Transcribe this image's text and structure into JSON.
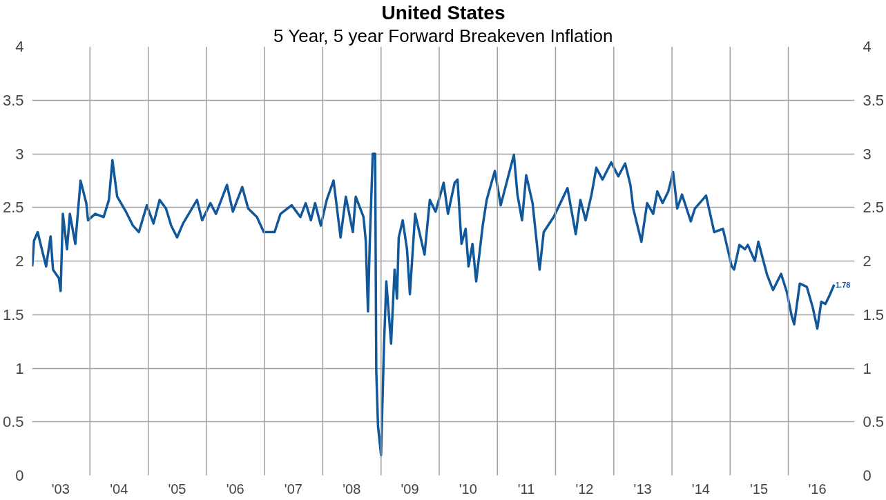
{
  "chart_data": {
    "type": "line",
    "title": "United States",
    "subtitle": "5 Year, 5 year Forward Breakeven Inflation",
    "x": [
      "2003-01-04",
      "2003-01-15",
      "2003-02-07",
      "2003-03-05",
      "2003-04-01",
      "2003-04-29",
      "2003-05-14",
      "2003-06-20",
      "2003-07-01",
      "2003-07-15",
      "2003-08-10",
      "2003-08-28",
      "2003-10-01",
      "2003-11-03",
      "2003-12-09",
      "2003-12-20",
      "2004-02-03",
      "2004-03-27",
      "2004-04-29",
      "2004-05-21",
      "2004-06-20",
      "2004-08-14",
      "2004-09-27",
      "2004-11-03",
      "2004-12-23",
      "2005-02-03",
      "2005-03-13",
      "2005-04-22",
      "2005-05-25",
      "2005-07-01",
      "2005-08-07",
      "2005-11-03",
      "2005-12-05",
      "2006-01-26",
      "2006-03-02",
      "2006-05-10",
      "2006-06-16",
      "2006-08-14",
      "2006-09-20",
      "2006-11-14",
      "2006-12-27",
      "2007-03-05",
      "2007-04-11",
      "2007-06-20",
      "2007-08-14",
      "2007-09-16",
      "2007-10-19",
      "2007-11-14",
      "2007-12-20",
      "2008-01-26",
      "2008-03-09",
      "2008-04-22",
      "2008-05-25",
      "2008-07-08",
      "2008-07-26",
      "2008-09-13",
      "2008-09-27",
      "2008-10-11",
      "2008-10-22",
      "2008-11-10",
      "2008-11-25",
      "2008-12-02",
      "2008-12-13",
      "2009-01-01",
      "2009-01-19",
      "2009-02-03",
      "2009-03-05",
      "2009-03-27",
      "2009-04-11",
      "2009-04-22",
      "2009-05-17",
      "2009-06-13",
      "2009-07-01",
      "2009-08-03",
      "2009-10-01",
      "2009-11-03",
      "2009-12-09",
      "2010-01-29",
      "2010-02-25",
      "2010-04-08",
      "2010-04-26",
      "2010-05-21",
      "2010-06-16",
      "2010-07-04",
      "2010-07-29",
      "2010-08-21",
      "2010-10-01",
      "2010-10-26",
      "2010-12-16",
      "2011-01-22",
      "2011-03-05",
      "2011-04-15",
      "2011-05-07",
      "2011-06-05",
      "2011-07-01",
      "2011-08-10",
      "2011-09-23",
      "2011-10-19",
      "2011-12-20",
      "2012-02-10",
      "2012-03-16",
      "2012-05-07",
      "2012-06-05",
      "2012-07-08",
      "2012-08-14",
      "2012-09-13",
      "2012-10-22",
      "2012-12-16",
      "2013-01-29",
      "2013-03-13",
      "2013-04-15",
      "2013-05-03",
      "2013-06-23",
      "2013-07-29",
      "2013-09-05",
      "2013-10-01",
      "2013-11-03",
      "2013-12-09",
      "2014-01-08",
      "2014-02-03",
      "2014-03-05",
      "2014-04-29",
      "2014-05-25",
      "2014-08-03",
      "2014-09-23",
      "2014-11-17",
      "2015-01-11",
      "2015-01-26",
      "2015-02-28",
      "2015-04-04",
      "2015-04-22",
      "2015-06-05",
      "2015-06-27",
      "2015-08-21",
      "2015-09-27",
      "2015-11-17",
      "2015-12-23",
      "2016-01-22",
      "2016-02-07",
      "2016-03-13",
      "2016-04-26",
      "2016-06-02",
      "2016-07-01",
      "2016-07-26",
      "2016-08-21",
      "2016-09-16",
      "2016-10-15"
    ],
    "series": [
      {
        "color": "#11589b",
        "values": [
          1.95,
          2.19,
          2.27,
          2.11,
          1.95,
          2.23,
          1.92,
          1.84,
          1.72,
          2.44,
          2.11,
          2.44,
          2.16,
          2.75,
          2.54,
          2.38,
          2.44,
          2.41,
          2.57,
          2.94,
          2.6,
          2.46,
          2.33,
          2.27,
          2.52,
          2.35,
          2.57,
          2.49,
          2.33,
          2.22,
          2.35,
          2.57,
          2.38,
          2.54,
          2.44,
          2.71,
          2.46,
          2.69,
          2.49,
          2.41,
          2.27,
          2.27,
          2.44,
          2.52,
          2.41,
          2.54,
          2.38,
          2.54,
          2.33,
          2.57,
          2.75,
          2.22,
          2.6,
          2.27,
          2.6,
          2.41,
          2.19,
          1.53,
          2.16,
          3.0,
          3.0,
          0.98,
          0.46,
          0.19,
          1.19,
          1.81,
          1.23,
          1.92,
          1.65,
          2.22,
          2.38,
          2.11,
          1.69,
          2.44,
          2.06,
          2.57,
          2.46,
          2.73,
          2.44,
          2.73,
          2.76,
          2.16,
          2.3,
          1.95,
          2.16,
          1.81,
          2.33,
          2.57,
          2.84,
          2.52,
          2.76,
          2.99,
          2.62,
          2.38,
          2.8,
          2.54,
          1.92,
          2.27,
          2.41,
          2.57,
          2.68,
          2.25,
          2.57,
          2.38,
          2.62,
          2.87,
          2.76,
          2.92,
          2.79,
          2.91,
          2.71,
          2.49,
          2.18,
          2.54,
          2.44,
          2.65,
          2.54,
          2.65,
          2.83,
          2.49,
          2.62,
          2.37,
          2.49,
          2.61,
          2.27,
          2.3,
          1.95,
          1.92,
          2.15,
          2.11,
          2.15,
          2.0,
          2.18,
          1.87,
          1.73,
          1.88,
          1.71,
          1.49,
          1.41,
          1.79,
          1.76,
          1.57,
          1.37,
          1.62,
          1.6,
          1.68,
          1.78
        ]
      }
    ],
    "annotations": [
      {
        "text": "1.78",
        "x": "2016-10-15",
        "y": 1.78
      }
    ],
    "xlim": [
      "2003-01-03",
      "2017-02-20"
    ],
    "xticks": [
      {
        "value": "2003-07-01",
        "label": "'03"
      },
      {
        "value": "2004-01-01",
        "label": null
      },
      {
        "value": "2004-07-01",
        "label": "'04"
      },
      {
        "value": "2005-01-01",
        "label": null
      },
      {
        "value": "2005-07-01",
        "label": "'05"
      },
      {
        "value": "2006-01-01",
        "label": null
      },
      {
        "value": "2006-07-01",
        "label": "'06"
      },
      {
        "value": "2007-01-01",
        "label": null
      },
      {
        "value": "2007-07-01",
        "label": "'07"
      },
      {
        "value": "2008-01-01",
        "label": null
      },
      {
        "value": "2008-07-01",
        "label": "'08"
      },
      {
        "value": "2009-01-01",
        "label": null
      },
      {
        "value": "2009-07-01",
        "label": "'09"
      },
      {
        "value": "2010-01-01",
        "label": null
      },
      {
        "value": "2010-07-01",
        "label": "'10"
      },
      {
        "value": "2011-01-01",
        "label": null
      },
      {
        "value": "2011-07-01",
        "label": "'11"
      },
      {
        "value": "2012-01-01",
        "label": null
      },
      {
        "value": "2012-07-01",
        "label": "'12"
      },
      {
        "value": "2013-01-01",
        "label": null
      },
      {
        "value": "2013-07-01",
        "label": "'13"
      },
      {
        "value": "2014-01-01",
        "label": null
      },
      {
        "value": "2014-07-01",
        "label": "'14"
      },
      {
        "value": "2015-01-01",
        "label": null
      },
      {
        "value": "2015-07-01",
        "label": "'15"
      },
      {
        "value": "2016-01-01",
        "label": null
      },
      {
        "value": "2016-07-01",
        "label": "'16"
      }
    ],
    "ylim": [
      0,
      4
    ],
    "yticks": [
      0,
      0.5,
      1,
      1.5,
      2,
      2.5,
      3,
      3.5,
      4
    ],
    "y2lim": [
      0,
      4
    ],
    "y2ticks": [
      0,
      0.5,
      1,
      1.5,
      2,
      2.5,
      3,
      3.5,
      4
    ],
    "grid": true,
    "marker": "none",
    "line_style": "solid"
  }
}
